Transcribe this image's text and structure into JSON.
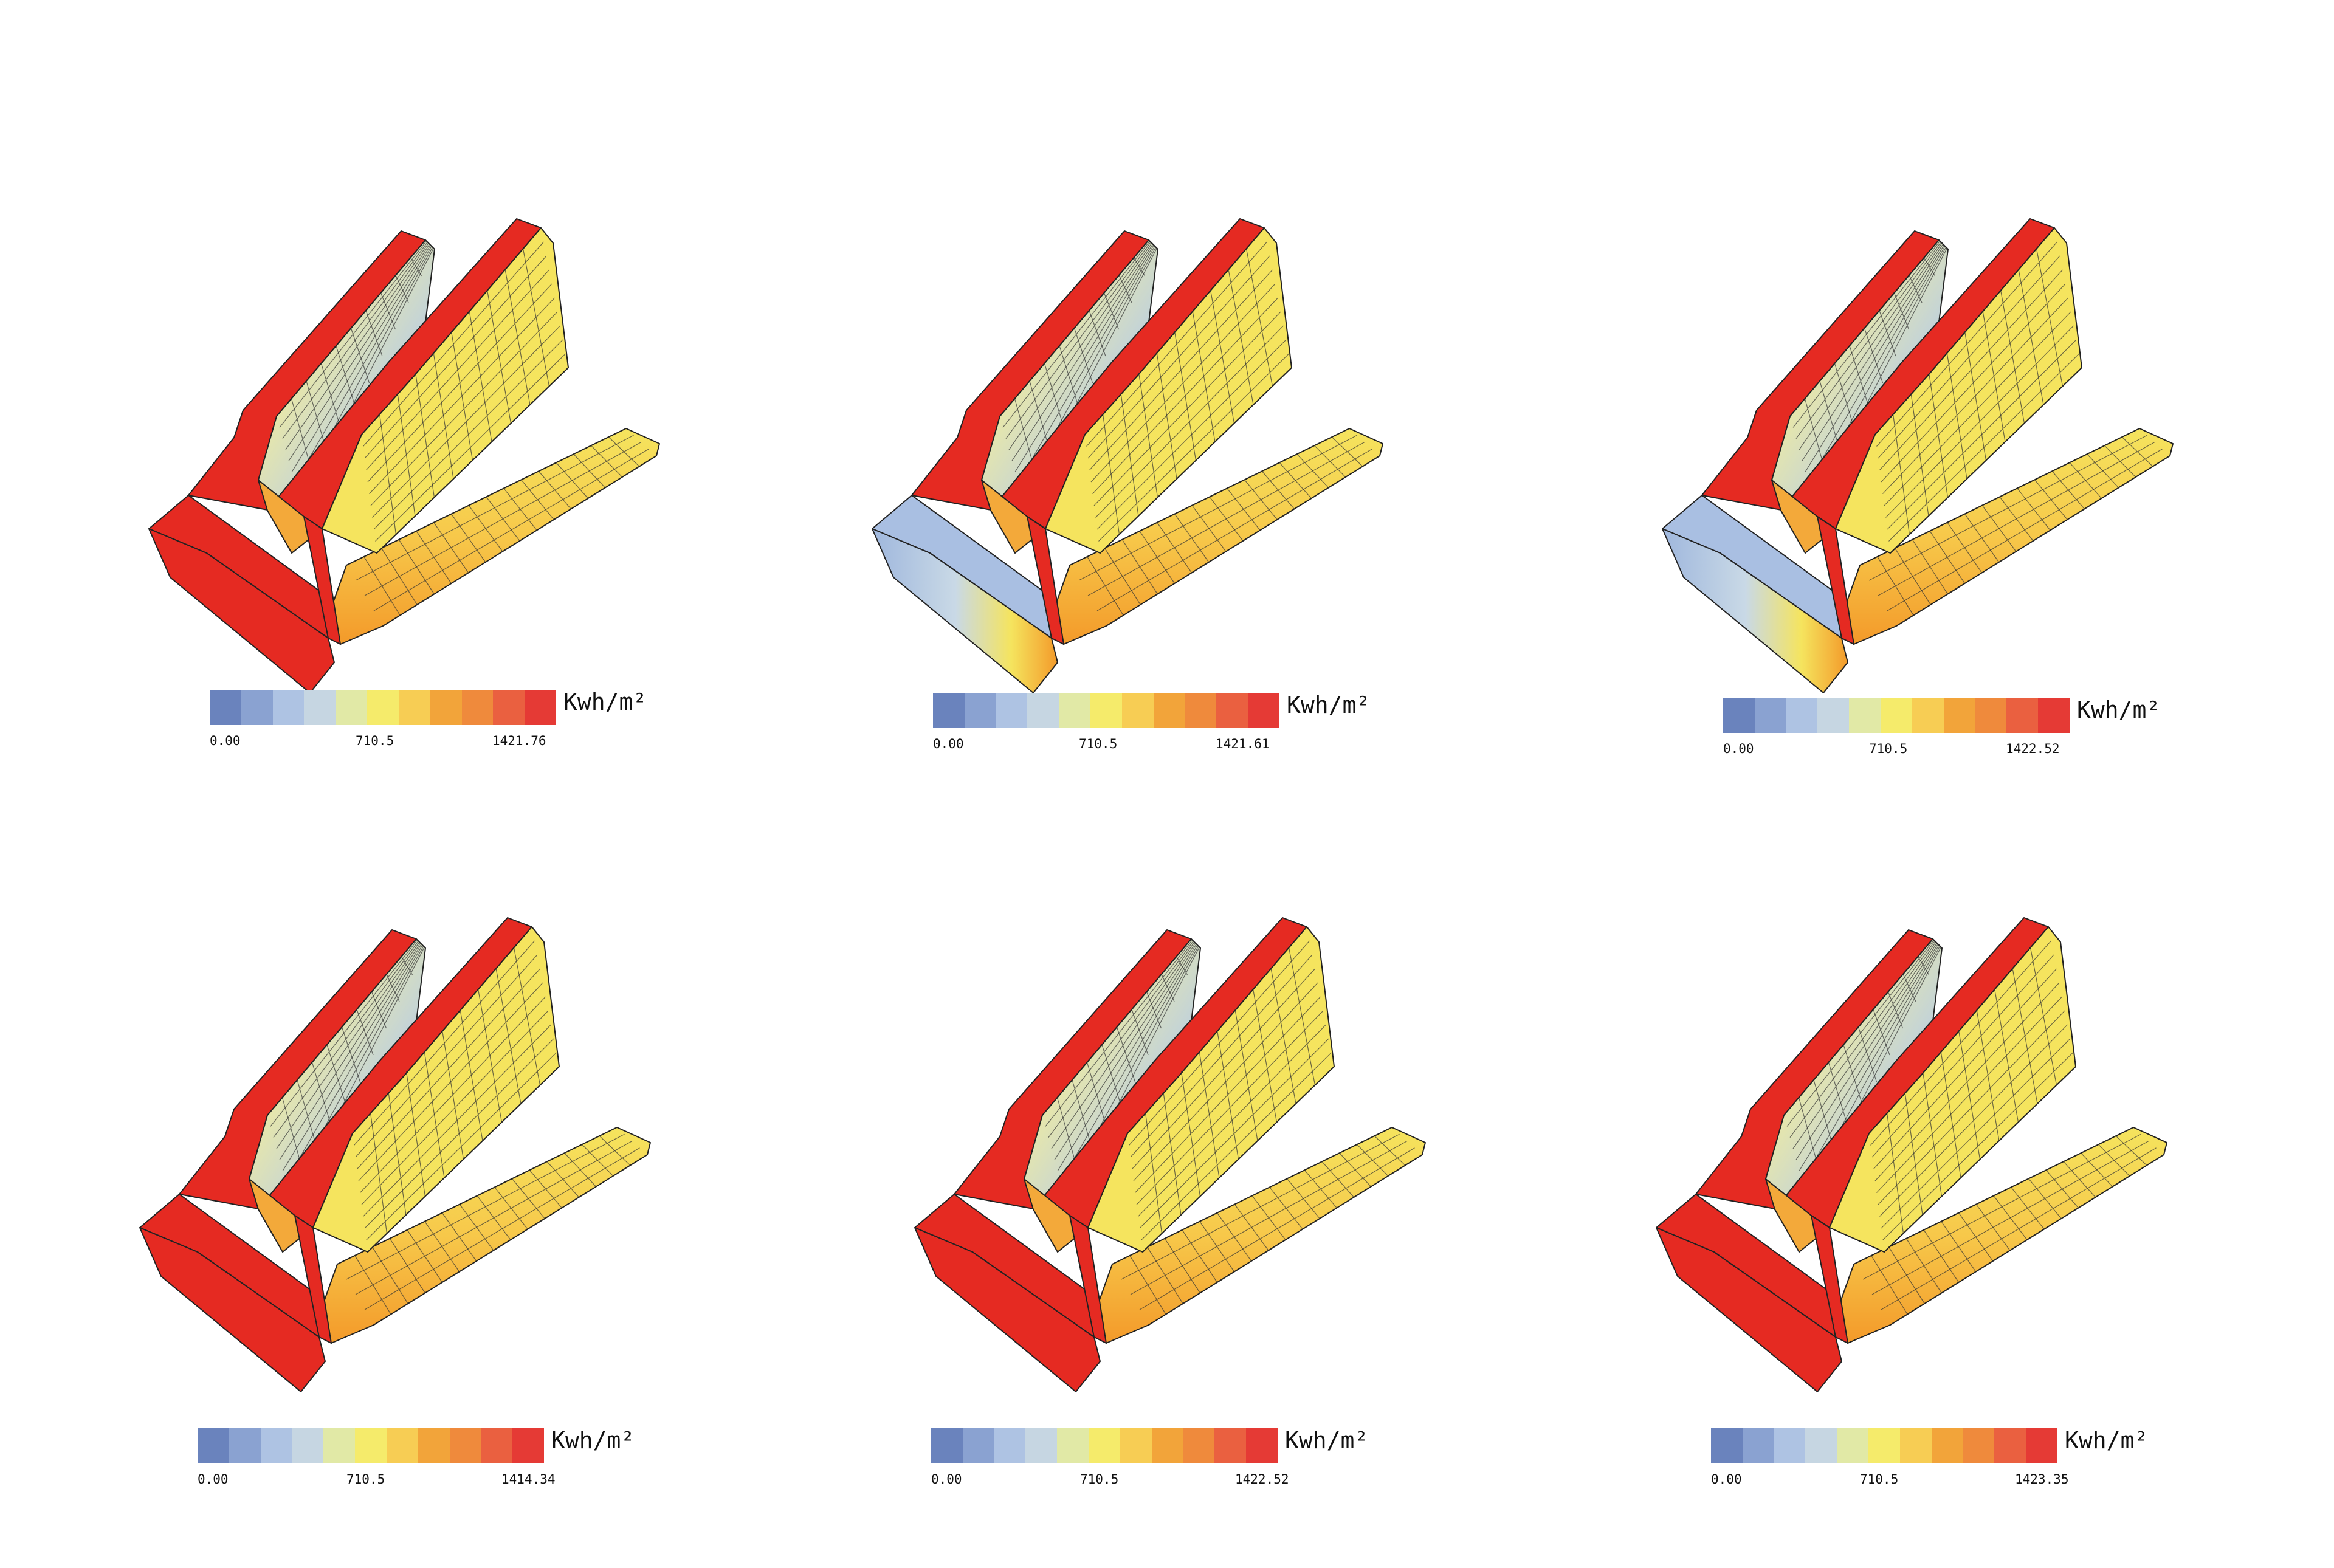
{
  "colors": {
    "scale": [
      "#6a83bd",
      "#8aa2d1",
      "#aec3e3",
      "#c6d6e2",
      "#e1e9a6",
      "#f5eb6b",
      "#f7cd54",
      "#f2a43a",
      "#ef8a3c",
      "#ea6040",
      "#e53a35"
    ],
    "red": "#e52a22",
    "orange": "#f39a2a",
    "yellow": "#f5e45e",
    "lightblue": "#b8cde6",
    "grid": "#1a1a1a"
  },
  "panels": [
    {
      "unit": "Kwh/m²",
      "min": "0.00",
      "mid": "710.5",
      "max": "1421.76",
      "variant": "red-base"
    },
    {
      "unit": "Kwh/m²",
      "min": "0.00",
      "mid": "710.5",
      "max": "1421.61",
      "variant": "blue-base"
    },
    {
      "unit": "Kwh/m²",
      "min": "0.00",
      "mid": "710.5",
      "max": "1422.52",
      "variant": "blue-base"
    },
    {
      "unit": "Kwh/m²",
      "min": "0.00",
      "mid": "710.5",
      "max": "1414.34",
      "variant": "red-base"
    },
    {
      "unit": "Kwh/m²",
      "min": "0.00",
      "mid": "710.5",
      "max": "1422.52",
      "variant": "red-base"
    },
    {
      "unit": "Kwh/m²",
      "min": "0.00",
      "mid": "710.5",
      "max": "1423.35",
      "variant": "red-base"
    }
  ]
}
